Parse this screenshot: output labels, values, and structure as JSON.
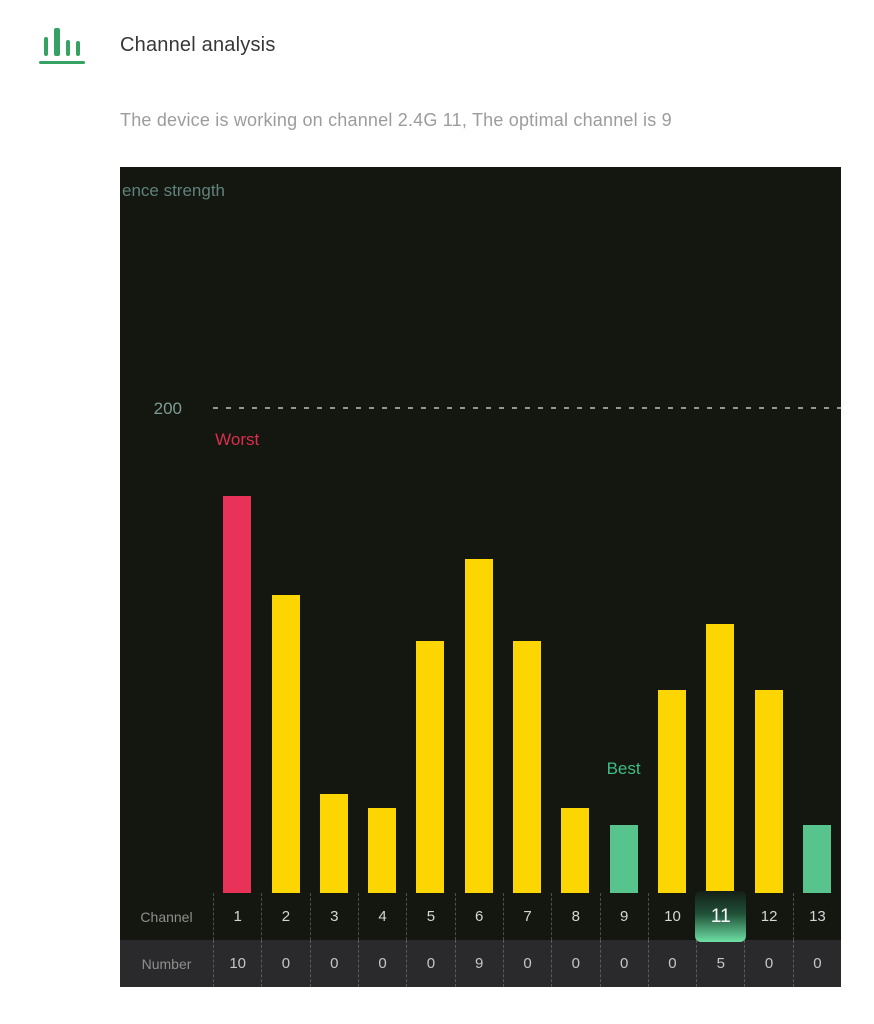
{
  "header": {
    "title": "Channel analysis",
    "subtitle": "The device is working on channel 2.4G 11, The optimal channel is 9",
    "icon": "bar-chart-icon",
    "icon_color": "#35a263"
  },
  "chart_data": {
    "type": "bar",
    "axis_label_visible": "ence strength",
    "gridline_label": "200",
    "gridline_value": 200,
    "ylim": [
      0,
      220
    ],
    "grid": "single-dashed-line",
    "legend_position": "none",
    "categories": [
      "1",
      "2",
      "3",
      "4",
      "5",
      "6",
      "7",
      "8",
      "9",
      "10",
      "11",
      "12",
      "13"
    ],
    "values": [
      164,
      123,
      41,
      35,
      104,
      138,
      104,
      35,
      28,
      84,
      111,
      84,
      28
    ],
    "bar_roles": [
      "worst",
      "normal",
      "normal",
      "normal",
      "normal",
      "normal",
      "normal",
      "normal",
      "best",
      "normal",
      "normal",
      "normal",
      "best"
    ],
    "annotations": [
      {
        "text": "Worst",
        "channel": 1
      },
      {
        "text": "Best",
        "channel": 9
      }
    ],
    "highlighted_channel": "11",
    "table": {
      "channel_label": "Channel",
      "number_label": "Number",
      "channels": [
        "1",
        "2",
        "3",
        "4",
        "5",
        "6",
        "7",
        "8",
        "9",
        "10",
        "11",
        "12",
        "13"
      ],
      "numbers": [
        "10",
        "0",
        "0",
        "0",
        "0",
        "9",
        "0",
        "0",
        "0",
        "0",
        "5",
        "0",
        "0"
      ]
    },
    "colors": {
      "worst": "#e83257",
      "normal": "#fdd501",
      "best": "#57c48d",
      "annotation_worst": "#d92e4e",
      "annotation_best": "#3fbd85",
      "chart_background": "#141610",
      "highlight_gradient_top": "#141f18",
      "highlight_gradient_bottom": "#6fdfa5"
    }
  }
}
